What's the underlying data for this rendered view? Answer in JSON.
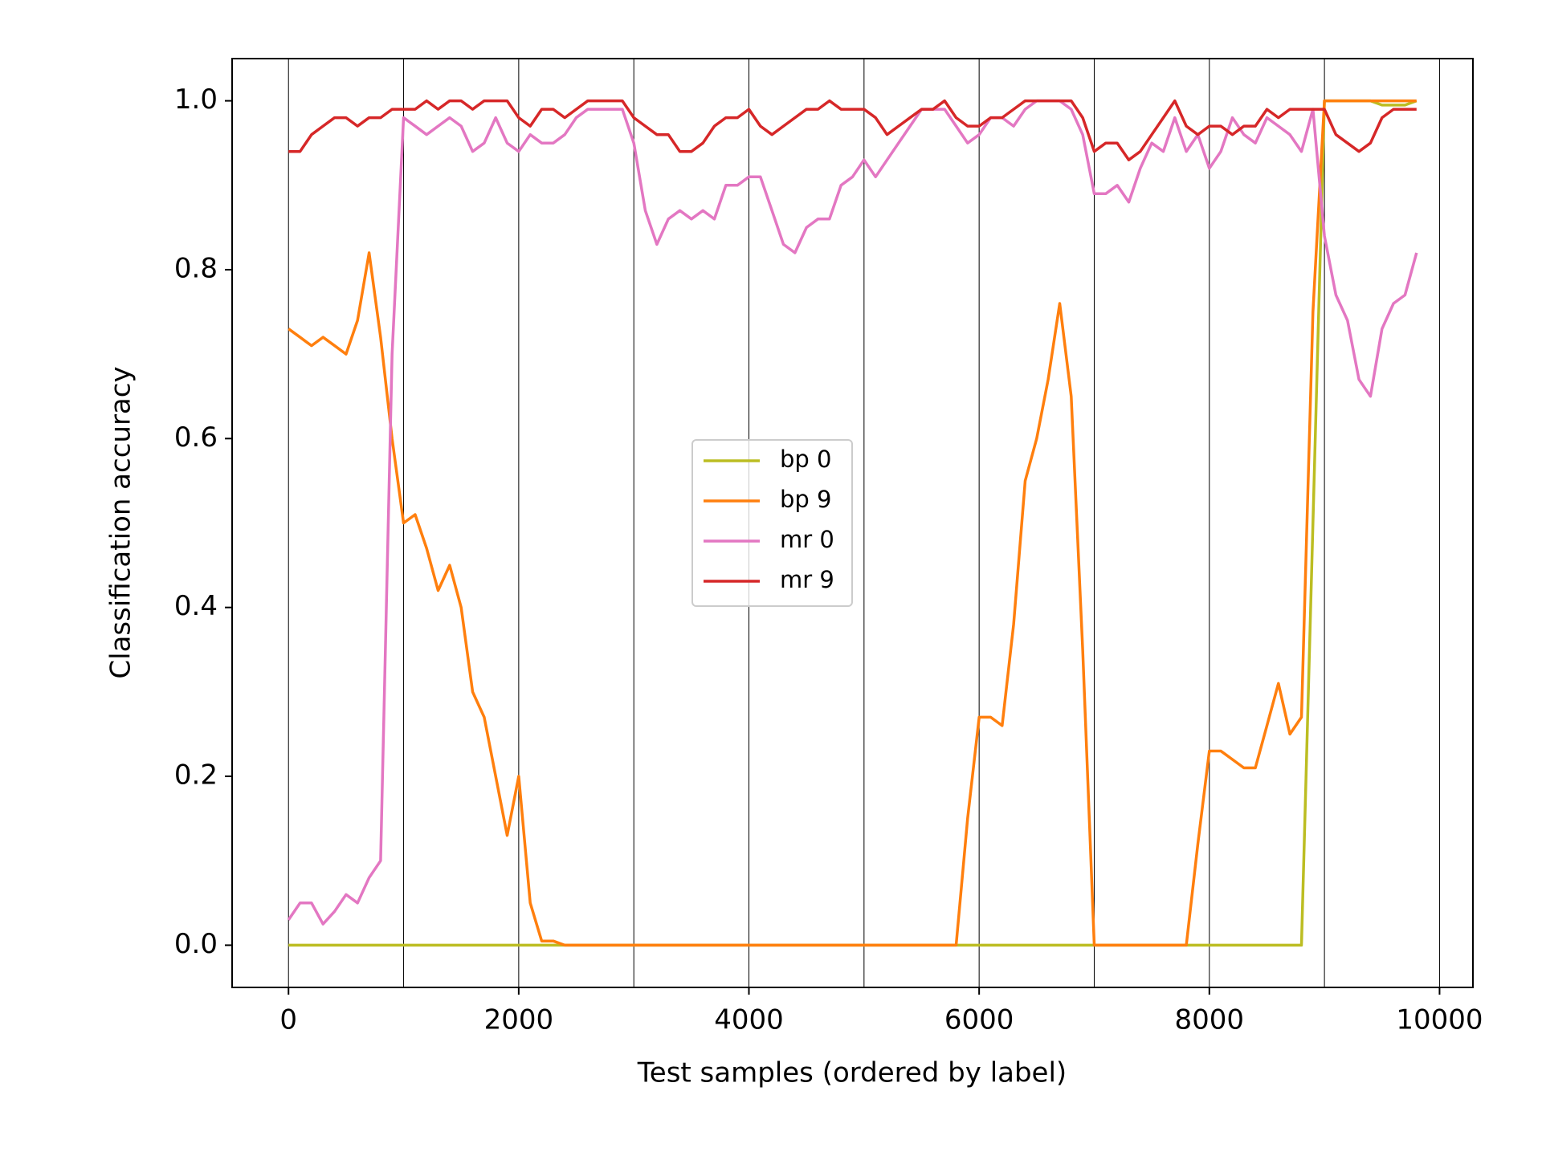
{
  "chart_data": {
    "type": "line",
    "xlabel": "Test samples (ordered by label)",
    "ylabel": "Classification accuracy",
    "legend": "center",
    "x": [
      0,
      100,
      200,
      300,
      400,
      500,
      600,
      700,
      800,
      900,
      1000,
      1100,
      1200,
      1300,
      1400,
      1500,
      1600,
      1700,
      1800,
      1900,
      2000,
      2100,
      2200,
      2300,
      2400,
      2500,
      2600,
      2700,
      2800,
      2900,
      3000,
      3100,
      3200,
      3300,
      3400,
      3500,
      3600,
      3700,
      3800,
      3900,
      4000,
      4100,
      4200,
      4300,
      4400,
      4500,
      4600,
      4700,
      4800,
      4900,
      5000,
      5100,
      5200,
      5300,
      5400,
      5500,
      5600,
      5700,
      5800,
      5900,
      6000,
      6100,
      6200,
      6300,
      6400,
      6500,
      6600,
      6700,
      6800,
      6900,
      7000,
      7100,
      7200,
      7300,
      7400,
      7500,
      7600,
      7700,
      7800,
      7900,
      8000,
      8100,
      8200,
      8300,
      8400,
      8500,
      8600,
      8700,
      8800,
      8900,
      9000,
      9100,
      9200,
      9300,
      9400,
      9500,
      9600,
      9700,
      9800
    ],
    "series": [
      {
        "name": "bp 0",
        "color": "#bcbd22",
        "values": [
          0,
          0,
          0,
          0,
          0,
          0,
          0,
          0,
          0,
          0,
          0,
          0,
          0,
          0,
          0,
          0,
          0,
          0,
          0,
          0,
          0,
          0,
          0,
          0,
          0,
          0,
          0,
          0,
          0,
          0,
          0,
          0,
          0,
          0,
          0,
          0,
          0,
          0,
          0,
          0,
          0,
          0,
          0,
          0,
          0,
          0,
          0,
          0,
          0,
          0,
          0,
          0,
          0,
          0,
          0,
          0,
          0,
          0,
          0,
          0,
          0,
          0,
          0,
          0,
          0,
          0,
          0,
          0,
          0,
          0,
          0,
          0,
          0,
          0,
          0,
          0,
          0,
          0,
          0,
          0,
          0,
          0,
          0,
          0,
          0,
          0,
          0,
          0,
          0,
          0.5,
          1.0,
          1.0,
          1.0,
          1.0,
          1.0,
          0.995,
          0.995,
          0.995,
          1.0
        ]
      },
      {
        "name": "bp 9",
        "color": "#ff7f0e",
        "values": [
          0.73,
          0.72,
          0.71,
          0.72,
          0.71,
          0.7,
          0.74,
          0.82,
          0.72,
          0.6,
          0.5,
          0.51,
          0.47,
          0.42,
          0.45,
          0.4,
          0.3,
          0.27,
          0.2,
          0.13,
          0.2,
          0.05,
          0.005,
          0.005,
          0,
          0,
          0,
          0,
          0,
          0,
          0,
          0,
          0,
          0,
          0,
          0,
          0,
          0,
          0,
          0,
          0,
          0,
          0,
          0,
          0,
          0,
          0,
          0,
          0,
          0,
          0,
          0,
          0,
          0,
          0,
          0,
          0,
          0,
          0,
          0.15,
          0.27,
          0.27,
          0.26,
          0.38,
          0.55,
          0.6,
          0.67,
          0.76,
          0.65,
          0.35,
          0,
          0,
          0,
          0,
          0,
          0,
          0,
          0,
          0,
          0.12,
          0.23,
          0.23,
          0.22,
          0.21,
          0.21,
          0.26,
          0.31,
          0.25,
          0.27,
          0.75,
          1.0,
          1.0,
          1.0,
          1.0,
          1.0,
          1.0,
          1.0,
          1.0,
          1.0
        ]
      },
      {
        "name": "mr 0",
        "color": "#e377c2",
        "values": [
          0.03,
          0.05,
          0.05,
          0.025,
          0.04,
          0.06,
          0.05,
          0.08,
          0.1,
          0.7,
          0.98,
          0.97,
          0.96,
          0.97,
          0.98,
          0.97,
          0.94,
          0.95,
          0.98,
          0.95,
          0.94,
          0.96,
          0.95,
          0.95,
          0.96,
          0.98,
          0.99,
          0.99,
          0.99,
          0.99,
          0.95,
          0.87,
          0.83,
          0.86,
          0.87,
          0.86,
          0.87,
          0.86,
          0.9,
          0.9,
          0.91,
          0.91,
          0.87,
          0.83,
          0.82,
          0.85,
          0.86,
          0.86,
          0.9,
          0.91,
          0.93,
          0.91,
          0.93,
          0.95,
          0.97,
          0.99,
          0.99,
          0.99,
          0.97,
          0.95,
          0.96,
          0.98,
          0.98,
          0.97,
          0.99,
          1.0,
          1.0,
          1.0,
          0.99,
          0.96,
          0.89,
          0.89,
          0.9,
          0.88,
          0.92,
          0.95,
          0.94,
          0.98,
          0.94,
          0.96,
          0.92,
          0.94,
          0.98,
          0.96,
          0.95,
          0.98,
          0.97,
          0.96,
          0.94,
          0.99,
          0.84,
          0.77,
          0.74,
          0.67,
          0.65,
          0.73,
          0.76,
          0.77,
          0.82
        ]
      },
      {
        "name": "mr 9",
        "color": "#d62728",
        "values": [
          0.94,
          0.94,
          0.96,
          0.97,
          0.98,
          0.98,
          0.97,
          0.98,
          0.98,
          0.99,
          0.99,
          0.99,
          1.0,
          0.99,
          1.0,
          1.0,
          0.99,
          1.0,
          1.0,
          1.0,
          0.98,
          0.97,
          0.99,
          0.99,
          0.98,
          0.99,
          1.0,
          1.0,
          1.0,
          1.0,
          0.98,
          0.97,
          0.96,
          0.96,
          0.94,
          0.94,
          0.95,
          0.97,
          0.98,
          0.98,
          0.99,
          0.97,
          0.96,
          0.97,
          0.98,
          0.99,
          0.99,
          1.0,
          0.99,
          0.99,
          0.99,
          0.98,
          0.96,
          0.97,
          0.98,
          0.99,
          0.99,
          1.0,
          0.98,
          0.97,
          0.97,
          0.98,
          0.98,
          0.99,
          1.0,
          1.0,
          1.0,
          1.0,
          1.0,
          0.98,
          0.94,
          0.95,
          0.95,
          0.93,
          0.94,
          0.96,
          0.98,
          1.0,
          0.97,
          0.96,
          0.97,
          0.97,
          0.96,
          0.97,
          0.97,
          0.99,
          0.98,
          0.99,
          0.99,
          0.99,
          0.99,
          0.96,
          0.95,
          0.94,
          0.95,
          0.98,
          0.99,
          0.99,
          0.99
        ]
      }
    ],
    "vlines": [
      0,
      1000,
      2000,
      3000,
      4000,
      5000,
      6000,
      7000,
      8000,
      9000,
      10000
    ],
    "xlim": [
      -490,
      10290
    ],
    "ylim": [
      -0.05,
      1.05
    ],
    "xticks": [
      0,
      2000,
      4000,
      6000,
      8000,
      10000
    ],
    "yticks": [
      {
        "value": 0,
        "label": "0.0"
      },
      0.2,
      0.4,
      0.6,
      0.8,
      {
        "value": 1,
        "label": "1.0"
      }
    ]
  }
}
